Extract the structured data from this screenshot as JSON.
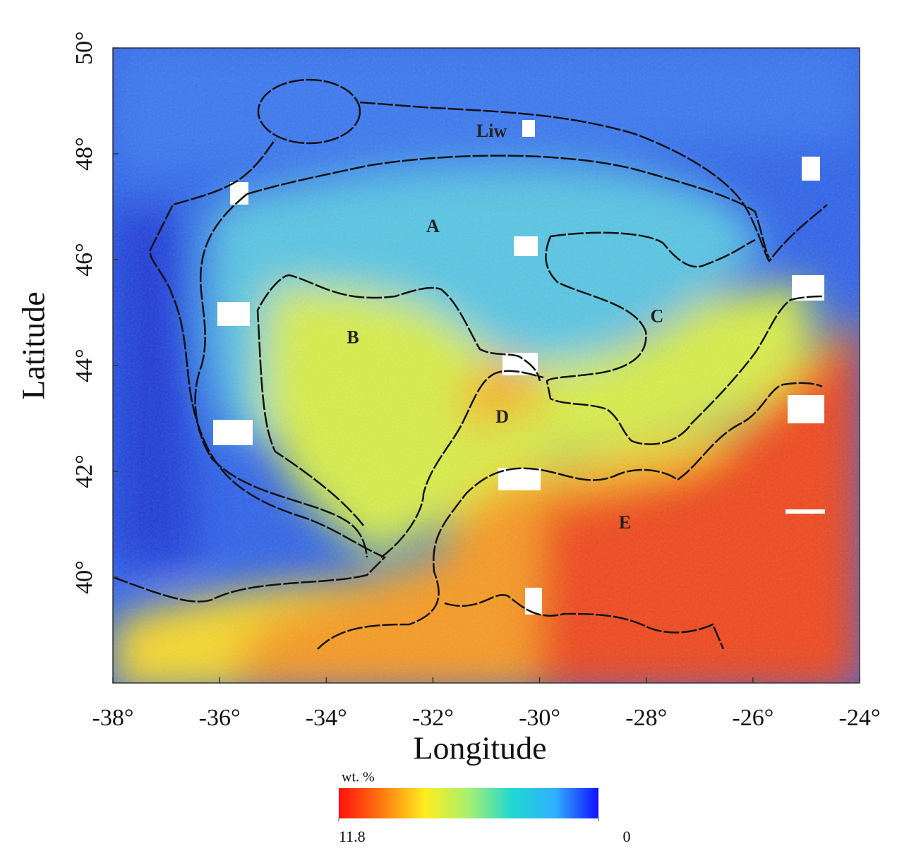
{
  "chart_data": {
    "type": "map",
    "x_label": "Longitude",
    "y_label": "Latitude",
    "xlim": [
      -38,
      -24
    ],
    "ylim": [
      38,
      50
    ],
    "xticks": [
      {
        "value": -38,
        "label": "-38°"
      },
      {
        "value": -36,
        "label": "-36°"
      },
      {
        "value": -34,
        "label": "-34°"
      },
      {
        "value": -32,
        "label": "-32°"
      },
      {
        "value": -30,
        "label": "-30°"
      },
      {
        "value": -28,
        "label": "-28°"
      },
      {
        "value": -26,
        "label": "-26°"
      },
      {
        "value": -24,
        "label": "-24°"
      }
    ],
    "yticks": [
      {
        "value": 40,
        "label": "40°"
      },
      {
        "value": 42,
        "label": "42°"
      },
      {
        "value": 44,
        "label": "44°"
      },
      {
        "value": 46,
        "label": "46°"
      },
      {
        "value": 48,
        "label": "48°"
      },
      {
        "value": 50,
        "label": "50°"
      }
    ],
    "regions": [
      {
        "label": "Liw",
        "x": -30.9,
        "y": 48.4
      },
      {
        "label": "A",
        "x": -32.0,
        "y": 46.6
      },
      {
        "label": "B",
        "x": -33.5,
        "y": 44.5
      },
      {
        "label": "C",
        "x": -27.8,
        "y": 44.9
      },
      {
        "label": "D",
        "x": -30.7,
        "y": 43.0
      },
      {
        "label": "E",
        "x": -28.4,
        "y": 41.0
      }
    ],
    "colorbar": {
      "label": "wt. %",
      "ticks": [
        11.8,
        0
      ],
      "colors": [
        "#ff1010",
        "#ff7a10",
        "#ffee20",
        "#a8f070",
        "#20d8d0",
        "#30b0ff",
        "#1010ff"
      ]
    }
  }
}
